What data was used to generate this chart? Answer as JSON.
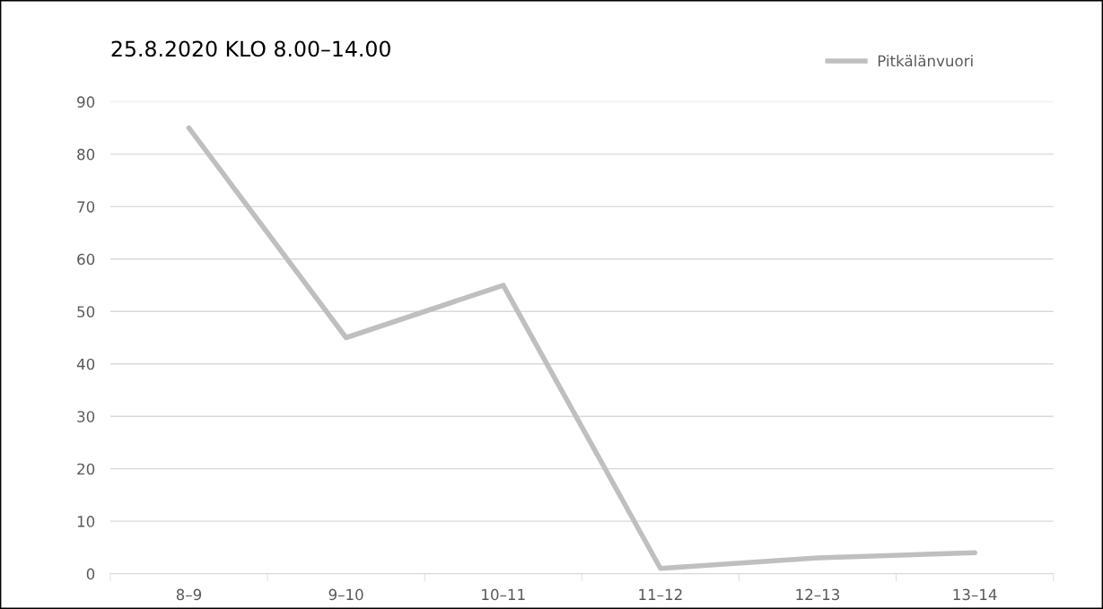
{
  "chart_data": {
    "type": "line",
    "title": "25.8.2020 KLO 8.00–14.00",
    "categories": [
      "8–9",
      "9–10",
      "10–11",
      "11–12",
      "12–13",
      "13–14"
    ],
    "series": [
      {
        "name": "Pitkälänvuori",
        "color": "#bfbfbf",
        "values": [
          85,
          45,
          55,
          1,
          3,
          4
        ]
      }
    ],
    "ylim": [
      0,
      90
    ],
    "yticks": [
      0,
      10,
      20,
      30,
      40,
      50,
      60,
      70,
      80,
      90
    ],
    "grid": "y",
    "legend": "top right",
    "marker": "none",
    "line_style": "solid"
  }
}
